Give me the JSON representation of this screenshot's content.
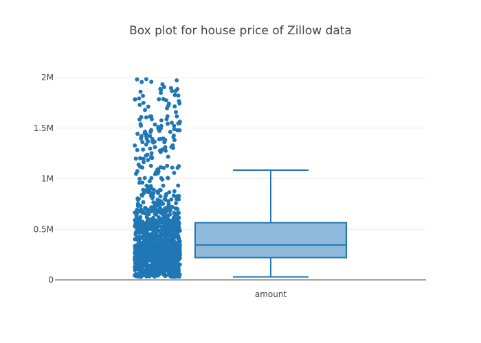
{
  "chart_data": {
    "type": "box",
    "title": "Box plot for house price of Zillow data",
    "xlabel": "",
    "ylabel": "",
    "categories": [
      "amount"
    ],
    "ylim": [
      0,
      2000000
    ],
    "yticks": [
      {
        "value": 0,
        "label": "0"
      },
      {
        "value": 500000,
        "label": "0.5M"
      },
      {
        "value": 1000000,
        "label": "1M"
      },
      {
        "value": 1500000,
        "label": "1.5M"
      },
      {
        "value": 2000000,
        "label": "2M"
      }
    ],
    "grid": true,
    "legend": "none",
    "box": {
      "category": "amount",
      "lower_whisker": 30000,
      "q1": 220000,
      "median": 345000,
      "q3": 565000,
      "upper_whisker": 1085000,
      "points": "all"
    },
    "colors": {
      "point": "#1f77b4",
      "box_fill": "#8fbadb",
      "box_line": "#1f77b4"
    }
  }
}
